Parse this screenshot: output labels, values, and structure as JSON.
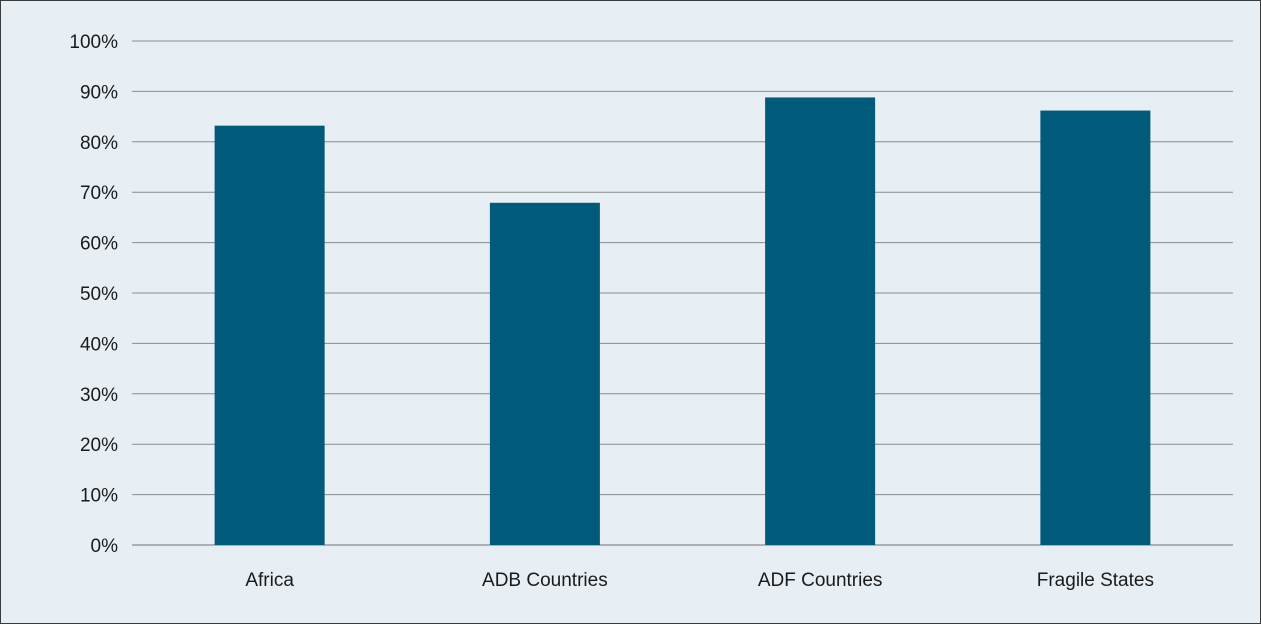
{
  "chart_data": {
    "type": "bar",
    "categories": [
      "Africa",
      "ADB Countries",
      "ADF Countries",
      "Fragile States"
    ],
    "values": [
      83.2,
      67.9,
      88.8,
      86.2
    ],
    "ylim": [
      0,
      100
    ],
    "y_ticks": [
      0,
      10,
      20,
      30,
      40,
      50,
      60,
      70,
      80,
      90,
      100
    ],
    "y_tick_format": "percent",
    "title": "",
    "xlabel": "",
    "ylabel": "",
    "grid": "horizontal",
    "legend": "none",
    "bar_color": "#005a7a",
    "background_color": "#e7eff5",
    "grid_color": "#8c8c8c"
  }
}
